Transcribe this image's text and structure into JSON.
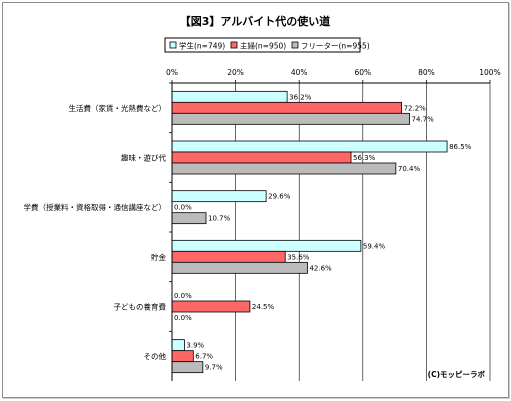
{
  "chart_data": {
    "type": "bar",
    "orientation": "horizontal",
    "title": "【図3】アルバイト代の使い道",
    "categories": [
      "生活費（家賃・光熱費など）",
      "趣味・遊び代",
      "学費（授業料・資格取得・通信講座など）",
      "貯金",
      "子どもの養育費",
      "その他"
    ],
    "series": [
      {
        "name": "学生(n=749)",
        "color": "#ccffff",
        "values": [
          36.2,
          86.5,
          29.6,
          59.4,
          0.0,
          3.9
        ]
      },
      {
        "name": "主婦(n=950)",
        "color": "#ff6666",
        "values": [
          72.2,
          56.3,
          0.0,
          35.6,
          24.5,
          6.7
        ]
      },
      {
        "name": "フリーター(n=955)",
        "color": "#bbbbbb",
        "values": [
          74.7,
          70.4,
          10.7,
          42.6,
          0.0,
          9.7
        ]
      }
    ],
    "xlim": [
      0,
      100
    ],
    "xticks": [
      "0%",
      "20%",
      "40%",
      "60%",
      "80%",
      "100%"
    ],
    "value_suffix": "%",
    "legend_position": "top",
    "grid": "vertical",
    "credit": "(C)モッピーラボ"
  }
}
